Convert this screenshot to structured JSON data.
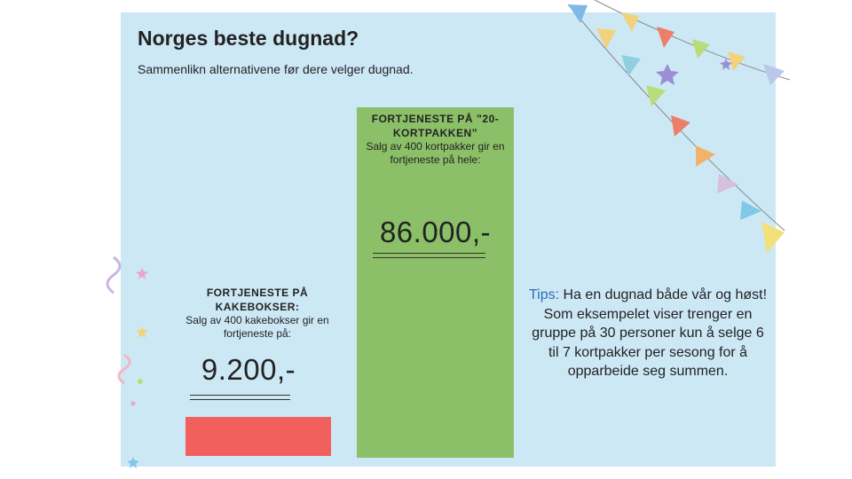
{
  "title": "Norges beste dugnad?",
  "subtitle": "Sammenlikn alternativene før dere velger dugnad.",
  "green_card": {
    "heading": "FORTJENESTE PÅ ”20-KORTPAKKEN”",
    "body": "Salg av 400 kortpakker gir en fortjeneste på hele:",
    "amount": "86.000,-",
    "color": "#8cc068"
  },
  "red_card": {
    "heading": "FORTJENESTE PÅ KAKEBOKSER:",
    "body": "Salg av 400 kakebokser gir en fortjeneste på:",
    "amount": "9.200,-",
    "color": "#f2605e"
  },
  "tips": {
    "label": "Tips:",
    "text": " Ha en dugnad både vår og høst! Som eksempelet viser trenger en gruppe på 30 personer kun å selge 6 til 7 kortpakker per sesong for å opparbeide seg summen."
  },
  "colors": {
    "background": "#cde8f5",
    "accent": "#2a6fb0"
  }
}
